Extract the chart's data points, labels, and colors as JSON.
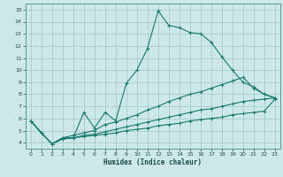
{
  "background_color": "#cce8e8",
  "grid_color": "#aacccc",
  "line_color": "#1a7a6e",
  "marker": "+",
  "xlabel": "Humidex (Indice chaleur)",
  "xlim": [
    -0.5,
    23.5
  ],
  "ylim": [
    3.5,
    15.5
  ],
  "xticks": [
    0,
    1,
    2,
    3,
    4,
    5,
    6,
    7,
    8,
    9,
    10,
    11,
    12,
    13,
    14,
    15,
    16,
    17,
    18,
    19,
    20,
    21,
    22,
    23
  ],
  "yticks": [
    4,
    5,
    6,
    7,
    8,
    9,
    10,
    11,
    12,
    13,
    14,
    15
  ],
  "lines": [
    {
      "x": [
        0,
        1,
        2,
        3,
        4,
        5,
        6,
        7,
        8,
        9,
        10,
        11,
        12,
        13,
        14,
        15,
        16,
        17,
        18,
        19,
        20,
        21,
        22,
        23
      ],
      "y": [
        5.8,
        4.8,
        3.9,
        4.4,
        4.4,
        6.5,
        5.2,
        6.5,
        5.8,
        8.9,
        10.0,
        11.8,
        14.9,
        13.7,
        13.5,
        13.1,
        13.0,
        12.3,
        11.1,
        10.0,
        9.0,
        8.6,
        8.0,
        7.7
      ]
    },
    {
      "x": [
        0,
        1,
        2,
        3,
        4,
        5,
        6,
        7,
        8,
        9,
        10,
        11,
        12,
        13,
        14,
        15,
        16,
        17,
        18,
        19,
        20,
        21,
        22,
        23
      ],
      "y": [
        5.8,
        4.8,
        3.9,
        4.4,
        4.6,
        4.8,
        5.0,
        5.5,
        5.7,
        6.0,
        6.3,
        6.7,
        7.0,
        7.4,
        7.7,
        8.0,
        8.2,
        8.5,
        8.8,
        9.1,
        9.4,
        8.5,
        8.0,
        7.7
      ]
    },
    {
      "x": [
        0,
        1,
        2,
        3,
        4,
        5,
        6,
        7,
        8,
        9,
        10,
        11,
        12,
        13,
        14,
        15,
        16,
        17,
        18,
        19,
        20,
        21,
        22,
        23
      ],
      "y": [
        5.8,
        4.8,
        3.9,
        4.3,
        4.4,
        4.6,
        4.7,
        4.9,
        5.1,
        5.3,
        5.5,
        5.7,
        5.9,
        6.1,
        6.3,
        6.5,
        6.7,
        6.8,
        7.0,
        7.2,
        7.4,
        7.5,
        7.6,
        7.7
      ]
    },
    {
      "x": [
        0,
        1,
        2,
        3,
        4,
        5,
        6,
        7,
        8,
        9,
        10,
        11,
        12,
        13,
        14,
        15,
        16,
        17,
        18,
        19,
        20,
        21,
        22,
        23
      ],
      "y": [
        5.8,
        4.8,
        3.9,
        4.3,
        4.4,
        4.5,
        4.6,
        4.7,
        4.8,
        5.0,
        5.1,
        5.2,
        5.4,
        5.5,
        5.6,
        5.8,
        5.9,
        6.0,
        6.1,
        6.3,
        6.4,
        6.5,
        6.6,
        7.6
      ]
    }
  ]
}
